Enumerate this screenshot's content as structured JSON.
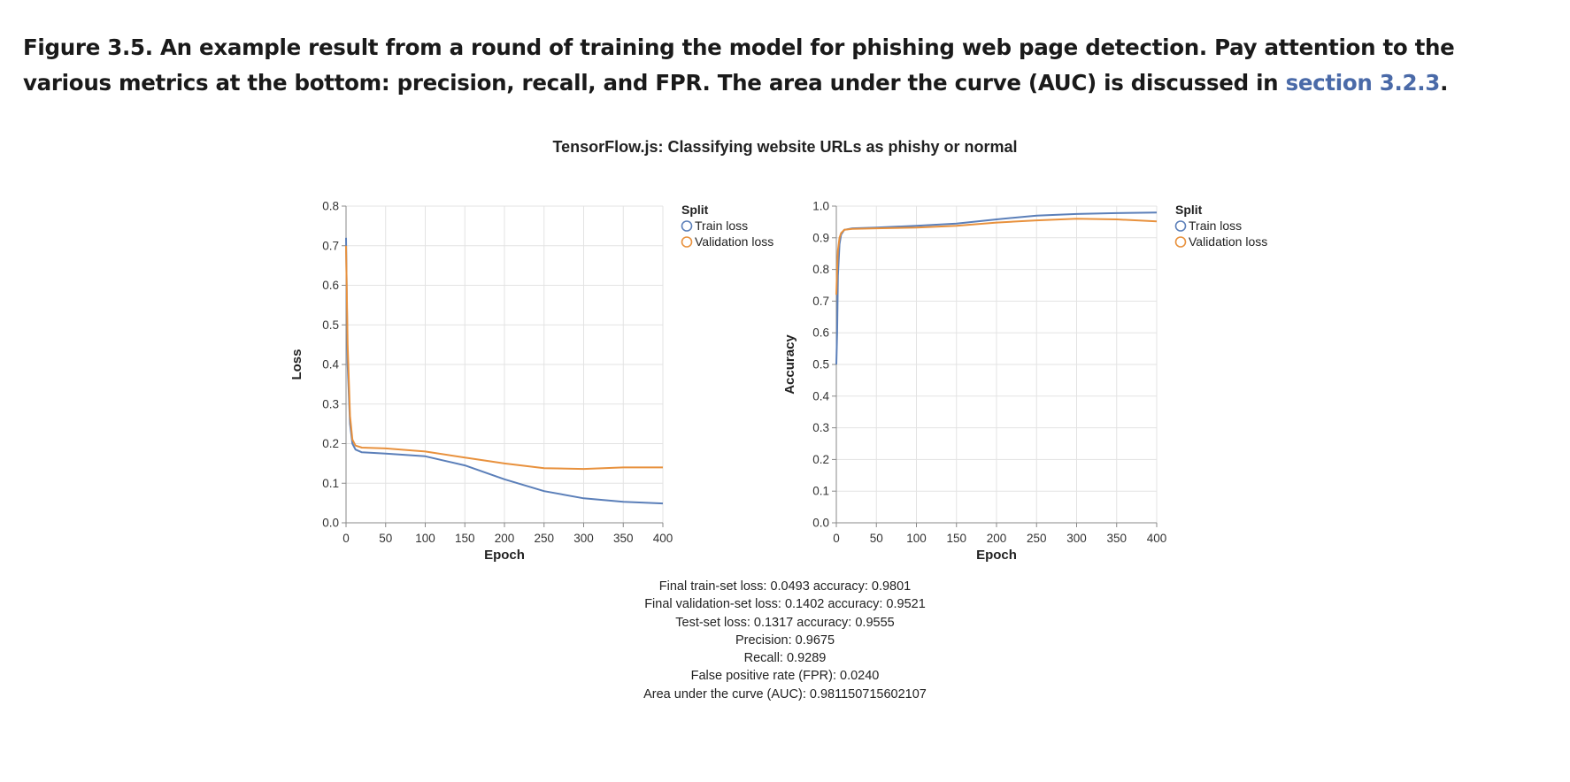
{
  "caption": {
    "text_before": "Figure 3.5. An example result from a round of training the model for phishing web page detection. Pay attention to the various metrics at the bottom: precision, recall, and FPR. The area under the curve (AUC) is discussed in ",
    "link_text": "section 3.2.3",
    "text_after": "."
  },
  "suptitle": "TensorFlow.js: Classifying website URLs as phishy or normal",
  "colors": {
    "train": "#5b7fb9",
    "validation": "#e8913d",
    "grid": "#e3e3e3",
    "axis": "#888888"
  },
  "chart_data": [
    {
      "type": "line",
      "xlabel": "Epoch",
      "ylabel": "Loss",
      "xlim": [
        0,
        400
      ],
      "ylim": [
        0,
        0.8
      ],
      "x_ticks": [
        0,
        50,
        100,
        150,
        200,
        250,
        300,
        350,
        400
      ],
      "y_ticks": [
        "0.0",
        "0.1",
        "0.2",
        "0.3",
        "0.4",
        "0.5",
        "0.6",
        "0.7",
        "0.8"
      ],
      "grid": true,
      "legend_position": "top-right",
      "legend_title": "Split",
      "series": [
        {
          "name": "Train loss",
          "color": "#5b7fb9",
          "x": [
            0,
            2,
            5,
            8,
            12,
            20,
            50,
            100,
            150,
            200,
            250,
            300,
            350,
            400
          ],
          "y": [
            0.72,
            0.4,
            0.25,
            0.2,
            0.185,
            0.178,
            0.175,
            0.168,
            0.145,
            0.11,
            0.08,
            0.062,
            0.053,
            0.049
          ]
        },
        {
          "name": "Validation loss",
          "color": "#e8913d",
          "x": [
            0,
            2,
            5,
            8,
            12,
            20,
            50,
            100,
            150,
            200,
            250,
            300,
            350,
            400
          ],
          "y": [
            0.7,
            0.45,
            0.27,
            0.21,
            0.195,
            0.19,
            0.188,
            0.18,
            0.165,
            0.15,
            0.138,
            0.136,
            0.14,
            0.14
          ]
        }
      ]
    },
    {
      "type": "line",
      "xlabel": "Epoch",
      "ylabel": "Accuracy",
      "xlim": [
        0,
        400
      ],
      "ylim": [
        0,
        1.0
      ],
      "x_ticks": [
        0,
        50,
        100,
        150,
        200,
        250,
        300,
        350,
        400
      ],
      "y_ticks": [
        "0.0",
        "0.1",
        "0.2",
        "0.3",
        "0.4",
        "0.5",
        "0.6",
        "0.7",
        "0.8",
        "0.9",
        "1.0"
      ],
      "grid": true,
      "legend_position": "top-right",
      "legend_title": "Split",
      "series": [
        {
          "name": "Train loss",
          "color": "#5b7fb9",
          "x": [
            0,
            1,
            2,
            4,
            6,
            10,
            20,
            50,
            100,
            150,
            200,
            250,
            300,
            350,
            400
          ],
          "y": [
            0.5,
            0.6,
            0.78,
            0.88,
            0.91,
            0.925,
            0.93,
            0.932,
            0.938,
            0.945,
            0.958,
            0.97,
            0.975,
            0.978,
            0.98
          ]
        },
        {
          "name": "Validation loss",
          "color": "#e8913d",
          "x": [
            0,
            1,
            2,
            4,
            6,
            10,
            20,
            50,
            100,
            150,
            200,
            250,
            300,
            350,
            400
          ],
          "y": [
            0.72,
            0.8,
            0.86,
            0.9,
            0.915,
            0.925,
            0.928,
            0.93,
            0.932,
            0.938,
            0.948,
            0.955,
            0.96,
            0.958,
            0.952
          ]
        }
      ]
    }
  ],
  "metrics": [
    "Final train-set loss: 0.0493 accuracy: 0.9801",
    "Final validation-set loss: 0.1402 accuracy: 0.9521",
    "Test-set loss: 0.1317 accuracy: 0.9555",
    "Precision: 0.9675",
    "Recall: 0.9289",
    "False positive rate (FPR): 0.0240",
    "Area under the curve (AUC): 0.981150715602107"
  ]
}
